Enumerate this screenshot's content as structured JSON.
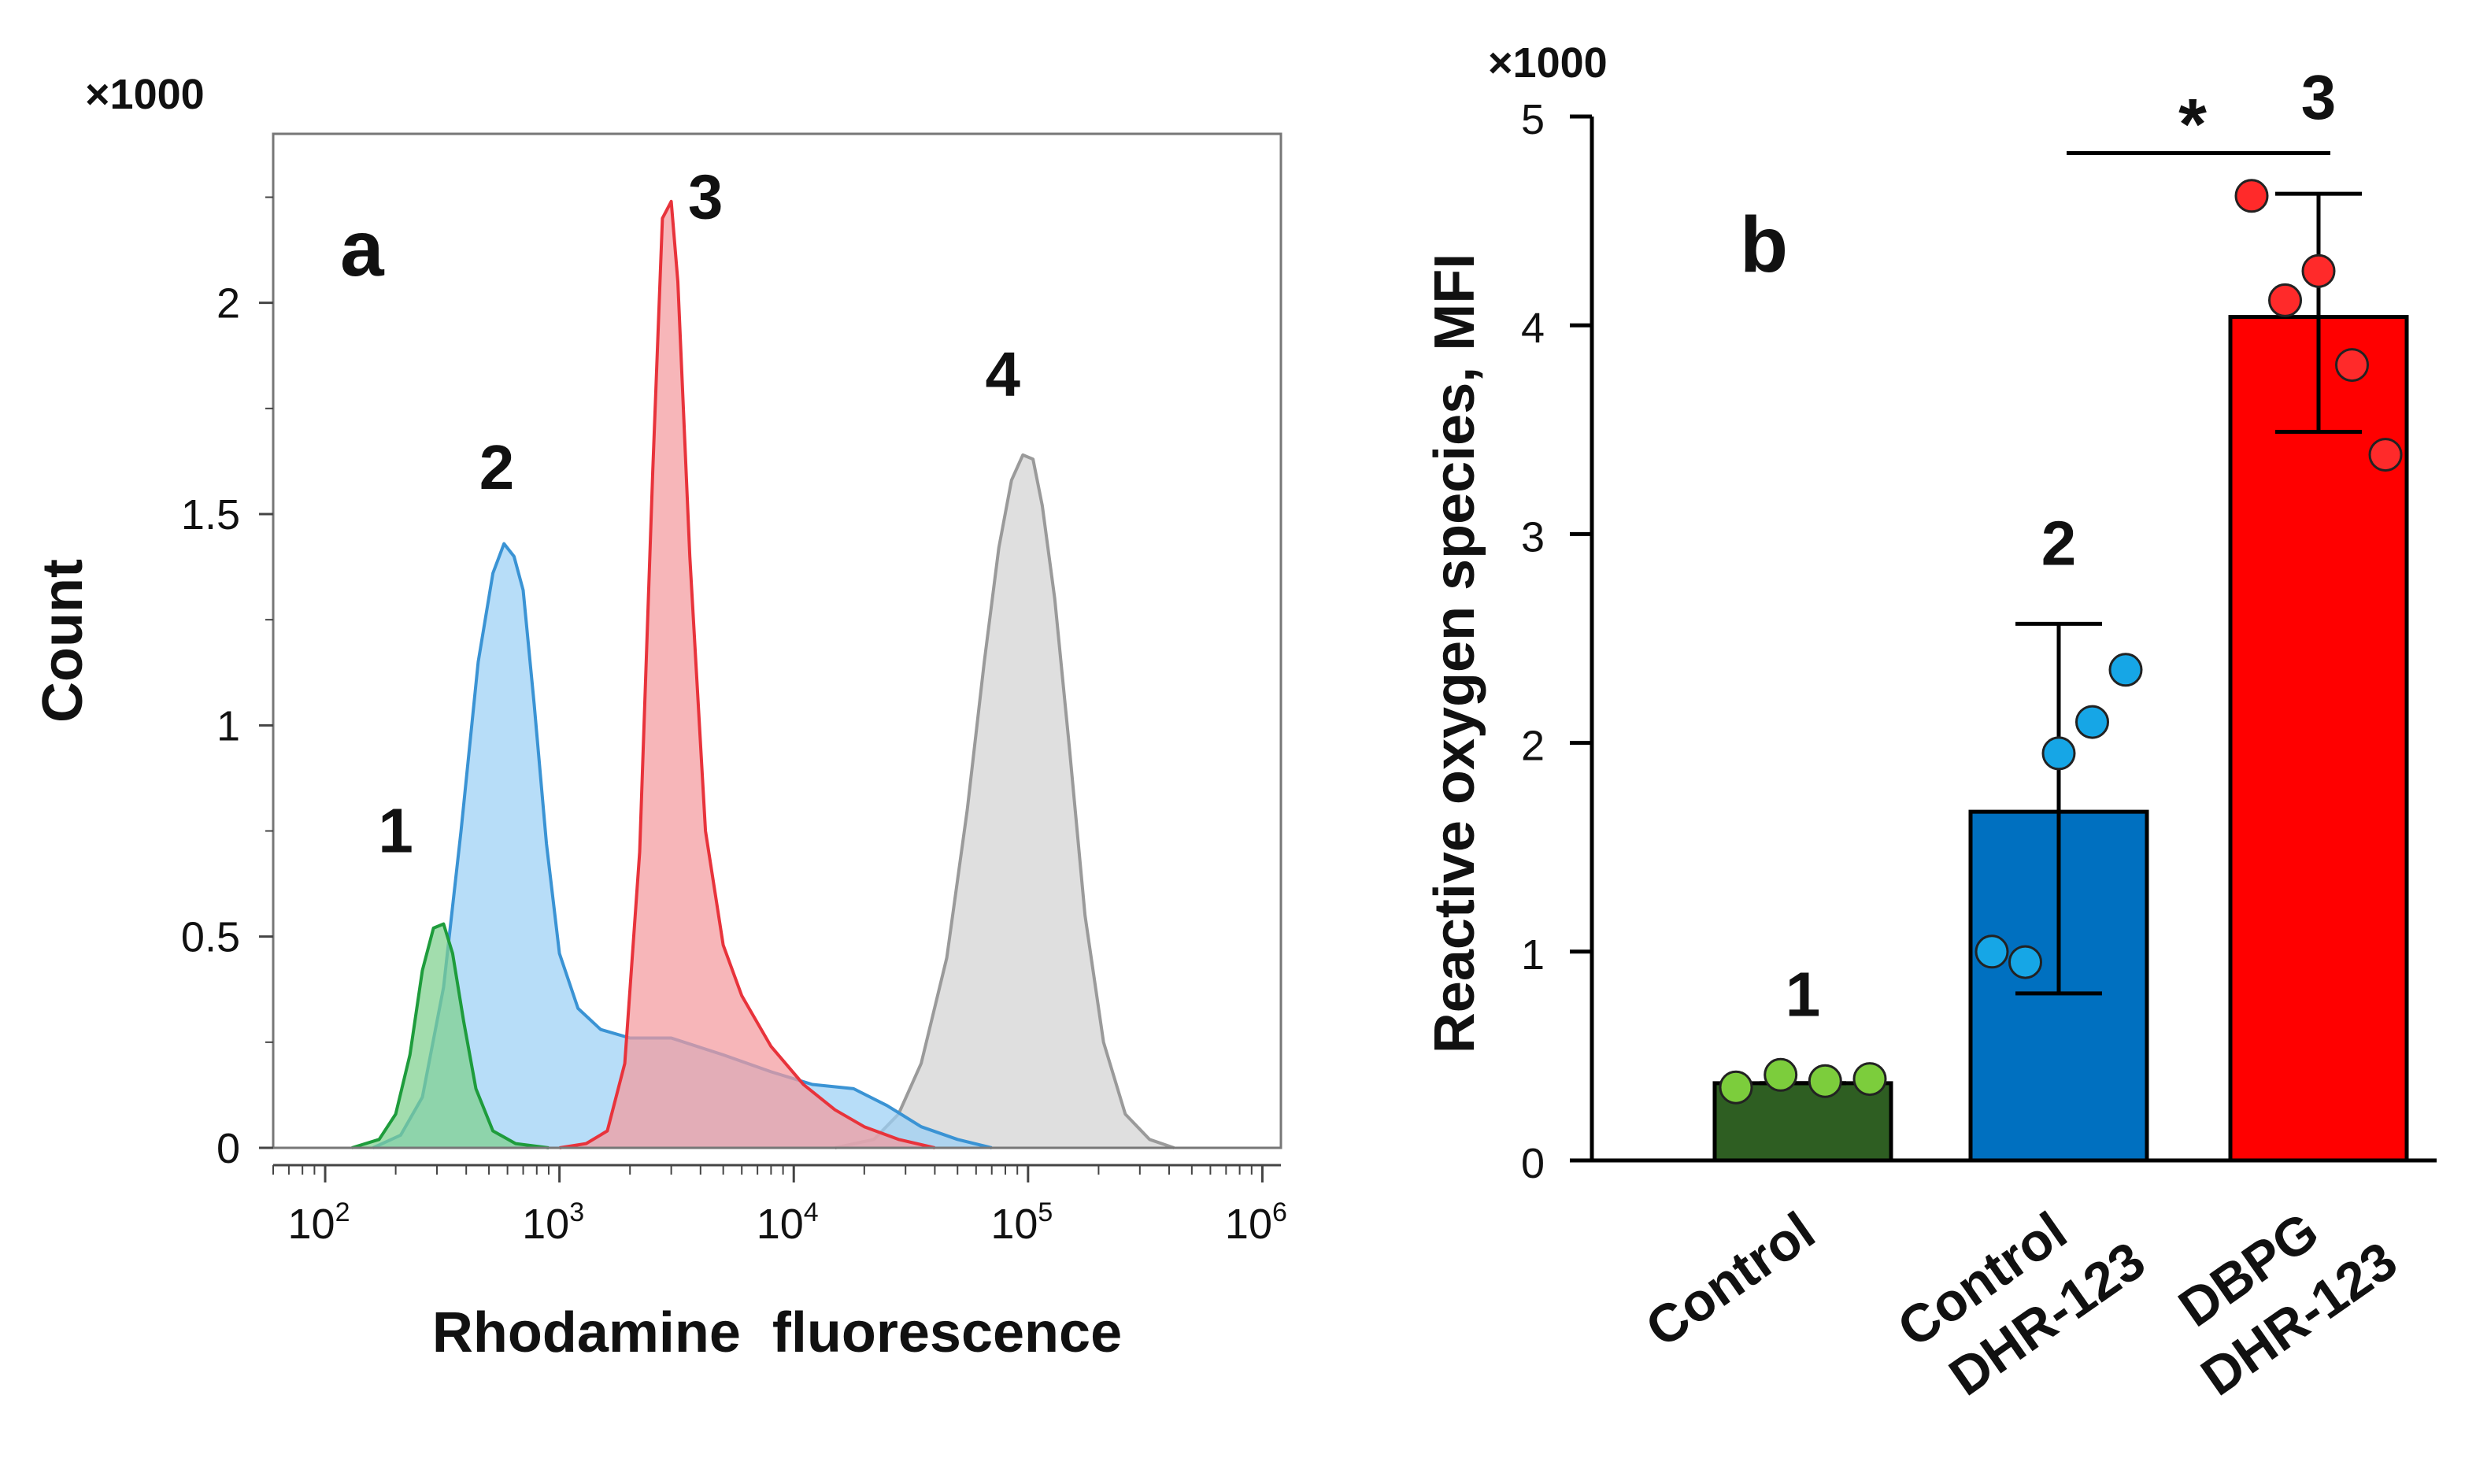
{
  "chart_data": [
    {
      "type": "area",
      "panel": "a",
      "multiplier": "×1000",
      "xlabel": "Rhodamine  fluorescence",
      "ylabel": "Count",
      "xscale": "log",
      "xlim": [
        60,
        1200000
      ],
      "ylim": [
        0,
        2.4
      ],
      "yticks": [
        {
          "value": 0,
          "label": "0"
        },
        {
          "value": 0.5,
          "label": "0.5"
        },
        {
          "value": 1,
          "label": "1"
        },
        {
          "value": 1.5,
          "label": "1.5"
        },
        {
          "value": 2,
          "label": "2"
        }
      ],
      "xticks": [
        {
          "value": 100,
          "base": "10",
          "exp": "2"
        },
        {
          "value": 1000,
          "base": "10",
          "exp": "3"
        },
        {
          "value": 10000,
          "base": "10",
          "exp": "4"
        },
        {
          "value": 100000,
          "base": "10",
          "exp": "5"
        },
        {
          "value": 1000000,
          "base": "10",
          "exp": "6"
        }
      ],
      "series": [
        {
          "name": "4",
          "label": "4",
          "color": "#9a9a9a",
          "fill": "#d3d3d3",
          "label_at": [
            78000,
            1.78
          ],
          "points": [
            [
              15000,
              0
            ],
            [
              22000,
              0.02
            ],
            [
              28000,
              0.08
            ],
            [
              35000,
              0.2
            ],
            [
              45000,
              0.45
            ],
            [
              55000,
              0.8
            ],
            [
              65000,
              1.15
            ],
            [
              75000,
              1.42
            ],
            [
              85000,
              1.58
            ],
            [
              95000,
              1.64
            ],
            [
              105000,
              1.63
            ],
            [
              115000,
              1.52
            ],
            [
              130000,
              1.3
            ],
            [
              150000,
              0.95
            ],
            [
              175000,
              0.55
            ],
            [
              210000,
              0.25
            ],
            [
              260000,
              0.08
            ],
            [
              330000,
              0.02
            ],
            [
              420000,
              0
            ]
          ]
        },
        {
          "name": "2",
          "label": "2",
          "color": "#3a93d4",
          "fill": "#9bd0f5",
          "label_at": [
            540,
            1.56
          ],
          "points": [
            [
              160,
              0
            ],
            [
              210,
              0.03
            ],
            [
              260,
              0.12
            ],
            [
              320,
              0.38
            ],
            [
              380,
              0.75
            ],
            [
              450,
              1.15
            ],
            [
              520,
              1.36
            ],
            [
              580,
              1.43
            ],
            [
              640,
              1.4
            ],
            [
              700,
              1.32
            ],
            [
              780,
              1.05
            ],
            [
              880,
              0.72
            ],
            [
              1000,
              0.46
            ],
            [
              1200,
              0.33
            ],
            [
              1500,
              0.28
            ],
            [
              2000,
              0.26
            ],
            [
              3000,
              0.26
            ],
            [
              5000,
              0.22
            ],
            [
              8000,
              0.18
            ],
            [
              12000,
              0.15
            ],
            [
              18000,
              0.14
            ],
            [
              25000,
              0.1
            ],
            [
              35000,
              0.05
            ],
            [
              50000,
              0.02
            ],
            [
              70000,
              0
            ]
          ]
        },
        {
          "name": "3",
          "label": "3",
          "color": "#e8333b",
          "fill": "#f49a9e",
          "label_at": [
            4200,
            2.2
          ],
          "points": [
            [
              1000,
              0
            ],
            [
              1300,
              0.01
            ],
            [
              1600,
              0.04
            ],
            [
              1900,
              0.2
            ],
            [
              2200,
              0.7
            ],
            [
              2500,
              1.6
            ],
            [
              2750,
              2.2
            ],
            [
              3000,
              2.24
            ],
            [
              3200,
              2.05
            ],
            [
              3600,
              1.4
            ],
            [
              4200,
              0.75
            ],
            [
              5000,
              0.48
            ],
            [
              6000,
              0.36
            ],
            [
              8000,
              0.24
            ],
            [
              11000,
              0.15
            ],
            [
              15000,
              0.09
            ],
            [
              20000,
              0.05
            ],
            [
              28000,
              0.02
            ],
            [
              40000,
              0
            ]
          ]
        },
        {
          "name": "1",
          "label": "1",
          "color": "#1e9c3c",
          "fill": "#7ed08e",
          "label_at": [
            200,
            0.7
          ],
          "points": [
            [
              130,
              0
            ],
            [
              170,
              0.02
            ],
            [
              200,
              0.08
            ],
            [
              230,
              0.22
            ],
            [
              260,
              0.42
            ],
            [
              290,
              0.52
            ],
            [
              320,
              0.53
            ],
            [
              350,
              0.46
            ],
            [
              390,
              0.3
            ],
            [
              440,
              0.14
            ],
            [
              520,
              0.04
            ],
            [
              650,
              0.01
            ],
            [
              900,
              0
            ]
          ]
        }
      ]
    },
    {
      "type": "bar",
      "panel": "b",
      "multiplier": "×1000",
      "ylabel": "Reactive oxygen species, MFI",
      "ylim": [
        0,
        5
      ],
      "yticks": [
        0,
        1,
        2,
        3,
        4,
        5
      ],
      "categories": [
        {
          "line1": "Control",
          "line2": ""
        },
        {
          "line1": "Control",
          "line2": "DHR-123"
        },
        {
          "line1": "DBPG",
          "line2": "DHR-123"
        }
      ],
      "bars": [
        {
          "label": "1",
          "value": 0.37,
          "error_low": 0.37,
          "error_high": 0.37,
          "color": "#2e5e22",
          "point_color": "#7ccd3c",
          "points": [
            0.35,
            0.41,
            0.38,
            0.39
          ]
        },
        {
          "label": "2",
          "value": 1.67,
          "error_low": 0.8,
          "error_high": 2.57,
          "color": "#0070c0",
          "point_color": "#16a6e6",
          "points": [
            1.0,
            0.95,
            1.95,
            2.1,
            2.35
          ]
        },
        {
          "label": "3",
          "value": 4.04,
          "error_low": 3.49,
          "error_high": 4.63,
          "color": "#ff0000",
          "point_color": "#ff2a2a",
          "points": [
            4.62,
            4.12,
            4.26,
            3.81,
            3.38
          ]
        }
      ],
      "significance": {
        "from_bar": 1,
        "to_bar": 2,
        "value_level": 4.9,
        "label": "*"
      }
    }
  ]
}
